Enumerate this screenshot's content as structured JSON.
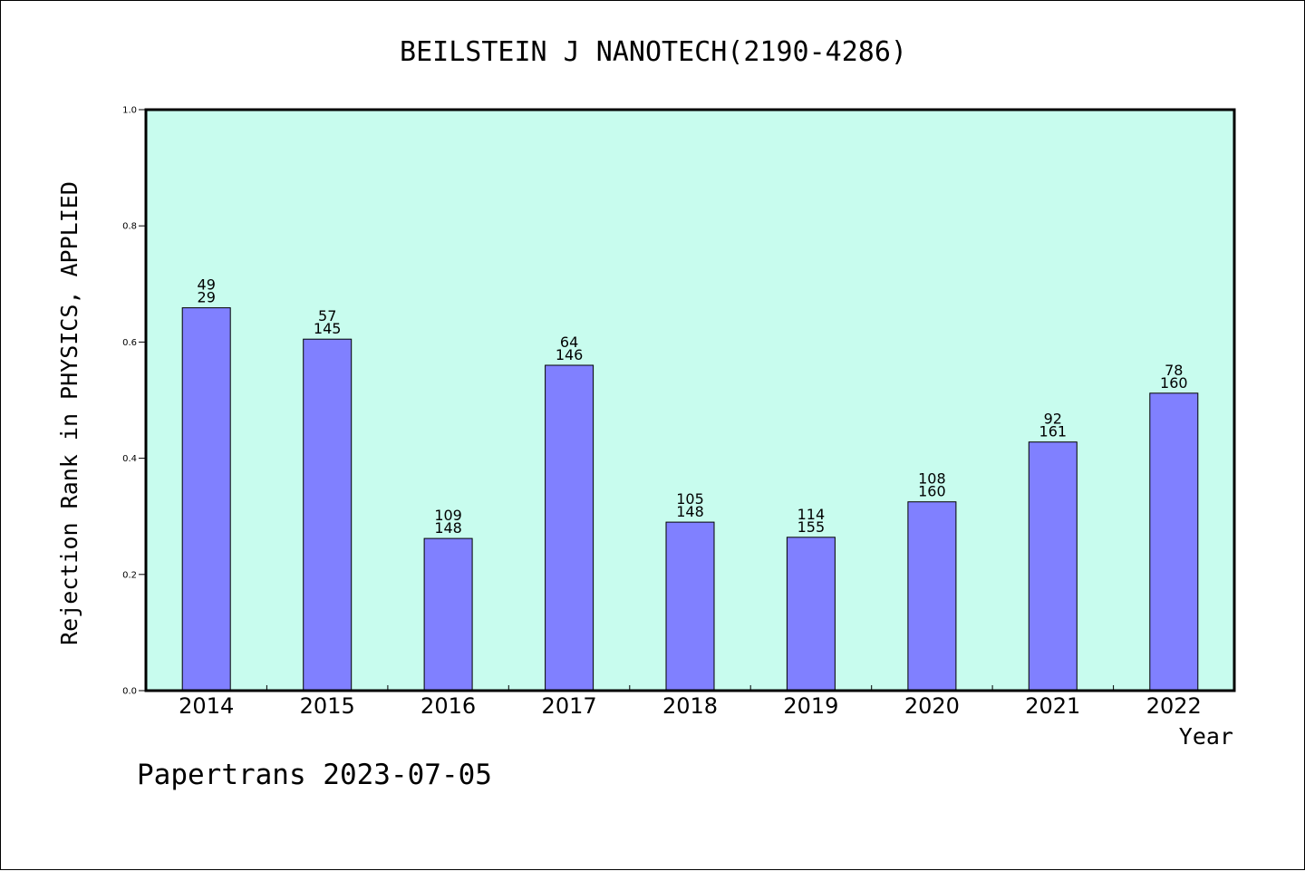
{
  "chart_data": {
    "type": "bar",
    "title": "BEILSTEIN J NANOTECH(2190-4286)",
    "xlabel": "Year",
    "ylabel": "Rejection Rank in PHYSICS, APPLIED",
    "ylim": [
      0,
      1.0
    ],
    "yticks": [
      "0.0",
      "0.2",
      "0.4",
      "0.6",
      "0.8",
      "1.0"
    ],
    "categories": [
      "2014",
      "2015",
      "2016",
      "2017",
      "2018",
      "2019",
      "2020",
      "2021",
      "2022"
    ],
    "values": [
      0.659,
      0.605,
      0.262,
      0.56,
      0.29,
      0.264,
      0.325,
      0.428,
      0.512
    ],
    "label_top": [
      "49",
      "57",
      "109",
      "64",
      "105",
      "114",
      "108",
      "92",
      "78"
    ],
    "label_bottom": [
      "29",
      "145",
      "148",
      "146",
      "148",
      "155",
      "160",
      "161",
      "160"
    ],
    "grid": false,
    "colors": {
      "plot_bg": "#c8fcee",
      "bar_fill": "#8080ff"
    }
  },
  "footer": "Papertrans 2023-07-05"
}
